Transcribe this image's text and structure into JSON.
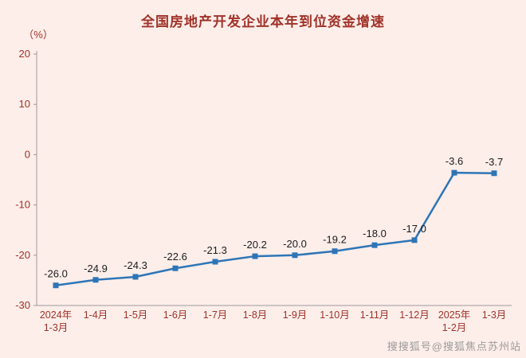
{
  "title": "全国房地产开发企业本年到位资金增速",
  "unit_label": "（%）",
  "watermark": "搜搜狐号@搜狐焦点苏州站",
  "colors": {
    "background": "#fdeeea",
    "title": "#a03228",
    "axis_text": "#a03228",
    "axis_line": "#9a9a9a",
    "line": "#2e75b6",
    "label_text": "#1a1a1a",
    "watermark": "#8c8c8c"
  },
  "chart_data": {
    "type": "line",
    "title": "全国房地产开发企业本年到位资金增速",
    "ylabel": "（%）",
    "categories": [
      "2024年\n1-3月",
      "1-4月",
      "1-5月",
      "1-6月",
      "1-7月",
      "1-8月",
      "1-9月",
      "1-10月",
      "1-11月",
      "1-12月",
      "2025年\n1-2月",
      "1-3月"
    ],
    "values": [
      -26.0,
      -24.9,
      -24.3,
      -22.6,
      -21.3,
      -20.2,
      -20.0,
      -19.2,
      -18.0,
      -17.0,
      -3.6,
      -3.7
    ],
    "ylim": [
      -30,
      20
    ],
    "yticks": [
      20,
      10,
      0,
      -10,
      -20,
      -30
    ],
    "grid": false,
    "legend": "none",
    "marker": "square"
  }
}
